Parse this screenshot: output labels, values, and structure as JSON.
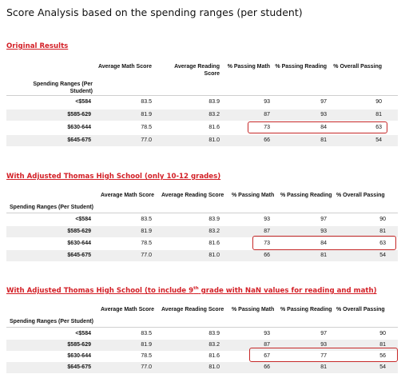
{
  "page_title": "Score Analysis based on the spending ranges (per student)",
  "columns": [
    "Average Math Score",
    "Average Reading Score",
    "% Passing Math",
    "% Passing Reading",
    "% Overall Passing"
  ],
  "index_name": "Spending Ranges (Per Student)",
  "sections": [
    {
      "heading": "Original Results",
      "rows": [
        {
          "label": "<$584",
          "values": [
            "83.5",
            "83.9",
            "93",
            "97",
            "90"
          ]
        },
        {
          "label": "$585-629",
          "values": [
            "81.9",
            "83.2",
            "87",
            "93",
            "81"
          ]
        },
        {
          "label": "$630-644",
          "values": [
            "78.5",
            "81.6",
            "73",
            "84",
            "63"
          ]
        },
        {
          "label": "$645-675",
          "values": [
            "77.0",
            "81.0",
            "66",
            "81",
            "54"
          ]
        }
      ]
    },
    {
      "heading": "With Adjusted Thomas High School (only 10-12 grades)",
      "rows": [
        {
          "label": "<$584",
          "values": [
            "83.5",
            "83.9",
            "93",
            "97",
            "90"
          ]
        },
        {
          "label": "$585-629",
          "values": [
            "81.9",
            "83.2",
            "87",
            "93",
            "81"
          ]
        },
        {
          "label": "$630-644",
          "values": [
            "78.5",
            "81.6",
            "73",
            "84",
            "63"
          ]
        },
        {
          "label": "$645-675",
          "values": [
            "77.0",
            "81.0",
            "66",
            "81",
            "54"
          ]
        }
      ]
    },
    {
      "heading_pre": "With Adjusted Thomas High School (to include 9",
      "heading_sup": "th",
      "heading_post": " grade with NaN values for reading and math)",
      "rows": [
        {
          "label": "<$584",
          "values": [
            "83.5",
            "83.9",
            "93",
            "97",
            "90"
          ]
        },
        {
          "label": "$585-629",
          "values": [
            "81.9",
            "83.2",
            "87",
            "93",
            "81"
          ]
        },
        {
          "label": "$630-644",
          "values": [
            "78.5",
            "81.6",
            "67",
            "77",
            "56"
          ]
        },
        {
          "label": "$645-675",
          "values": [
            "77.0",
            "81.0",
            "66",
            "81",
            "54"
          ]
        }
      ]
    }
  ]
}
